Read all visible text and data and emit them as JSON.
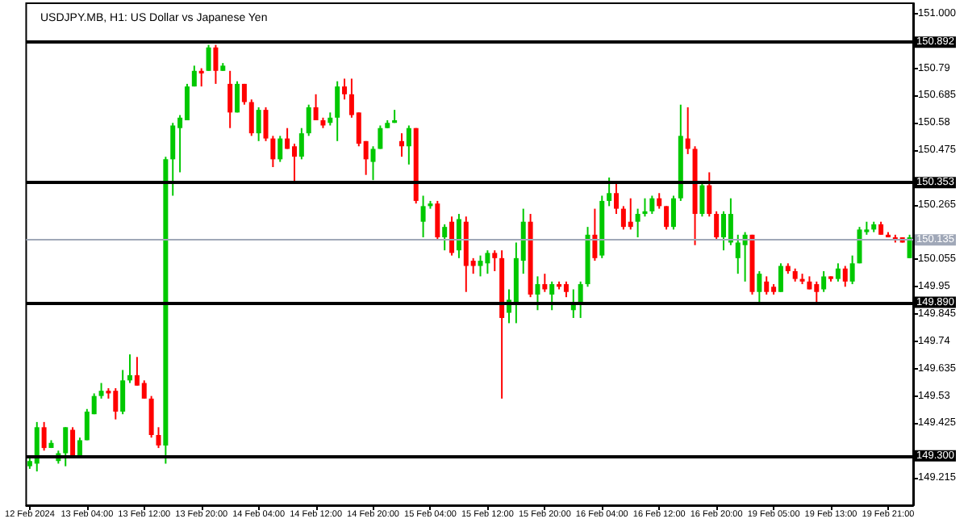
{
  "chart_data": {
    "type": "candlestick",
    "title": "USDJPY.MB, H1: US Dollar vs Japanese Yen",
    "categories": [
      "12 Feb 2024",
      null,
      null,
      null,
      null,
      null,
      null,
      null,
      "13 Feb 04:00",
      null,
      null,
      null,
      null,
      null,
      null,
      null,
      "13 Feb 12:00",
      null,
      null,
      null,
      null,
      null,
      null,
      null,
      "13 Feb 20:00",
      null,
      null,
      null,
      null,
      null,
      null,
      null,
      "14 Feb 04:00",
      null,
      null,
      null,
      null,
      null,
      null,
      null,
      "14 Feb 12:00",
      null,
      null,
      null,
      null,
      null,
      null,
      null,
      "14 Feb 20:00",
      null,
      null,
      null,
      null,
      null,
      null,
      null,
      "15 Feb 04:00",
      null,
      null,
      null,
      null,
      null,
      null,
      null,
      "15 Feb 12:00",
      null,
      null,
      null,
      null,
      null,
      null,
      null,
      "15 Feb 20:00",
      null,
      null,
      null,
      null,
      null,
      null,
      null,
      "16 Feb 04:00",
      null,
      null,
      null,
      null,
      null,
      null,
      null,
      "16 Feb 12:00",
      null,
      null,
      null,
      null,
      null,
      null,
      null,
      "16 Feb 20:00",
      null,
      null,
      null,
      null,
      null,
      null,
      null,
      "19 Feb 05:00",
      null,
      null,
      null,
      null,
      null,
      null,
      null,
      "19 Feb 13:00",
      null,
      null,
      null,
      null,
      null,
      null,
      null,
      "19 Feb 21:00",
      null,
      null,
      null
    ],
    "ohlc": [
      [
        149.26,
        149.29,
        149.25,
        149.28
      ],
      [
        149.27,
        149.43,
        149.24,
        149.41
      ],
      [
        149.41,
        149.43,
        149.32,
        149.33
      ],
      [
        149.33,
        149.36,
        149.33,
        149.35
      ],
      [
        149.28,
        149.32,
        149.27,
        149.31
      ],
      [
        149.31,
        149.41,
        149.26,
        149.41
      ],
      [
        149.4,
        149.41,
        149.3,
        149.3
      ],
      [
        149.3,
        149.37,
        149.3,
        149.36
      ],
      [
        149.36,
        149.48,
        149.36,
        149.47
      ],
      [
        149.46,
        149.54,
        149.46,
        149.53
      ],
      [
        149.53,
        149.58,
        149.52,
        149.55
      ],
      [
        149.55,
        149.56,
        149.52,
        149.54
      ],
      [
        149.55,
        149.56,
        149.44,
        149.47
      ],
      [
        149.47,
        149.63,
        149.46,
        149.59
      ],
      [
        149.59,
        149.69,
        149.58,
        149.61
      ],
      [
        149.61,
        149.68,
        149.57,
        149.57
      ],
      [
        149.58,
        149.59,
        149.52,
        149.52
      ],
      [
        149.52,
        149.53,
        149.37,
        149.38
      ],
      [
        149.38,
        149.41,
        149.33,
        149.34
      ],
      [
        149.34,
        150.45,
        149.27,
        150.44
      ],
      [
        150.44,
        150.58,
        150.3,
        150.57
      ],
      [
        150.56,
        150.61,
        150.39,
        150.6
      ],
      [
        150.59,
        150.73,
        150.59,
        150.72
      ],
      [
        150.72,
        150.8,
        150.72,
        150.78
      ],
      [
        150.78,
        150.79,
        150.72,
        150.77
      ],
      [
        150.78,
        150.88,
        150.78,
        150.87
      ],
      [
        150.87,
        150.88,
        150.73,
        150.78
      ],
      [
        150.78,
        150.81,
        150.78,
        150.8
      ],
      [
        150.73,
        150.78,
        150.56,
        150.62
      ],
      [
        150.62,
        150.74,
        150.62,
        150.73
      ],
      [
        150.73,
        150.73,
        150.65,
        150.66
      ],
      [
        150.66,
        150.67,
        150.53,
        150.54
      ],
      [
        150.54,
        150.64,
        150.51,
        150.63
      ],
      [
        150.63,
        150.64,
        150.51,
        150.52
      ],
      [
        150.52,
        150.53,
        150.41,
        150.44
      ],
      [
        150.44,
        150.53,
        150.43,
        150.52
      ],
      [
        150.52,
        150.56,
        150.48,
        150.48
      ],
      [
        150.49,
        150.5,
        150.35,
        150.45
      ],
      [
        150.45,
        150.56,
        150.44,
        150.54
      ],
      [
        150.54,
        150.65,
        150.53,
        150.64
      ],
      [
        150.64,
        150.69,
        150.59,
        150.59
      ],
      [
        150.59,
        150.6,
        150.56,
        150.57
      ],
      [
        150.58,
        150.62,
        150.57,
        150.6
      ],
      [
        150.6,
        150.74,
        150.51,
        150.72
      ],
      [
        150.72,
        150.75,
        150.67,
        150.69
      ],
      [
        150.69,
        150.75,
        150.6,
        150.61
      ],
      [
        150.62,
        150.62,
        150.49,
        150.5
      ],
      [
        150.51,
        150.51,
        150.38,
        150.44
      ],
      [
        150.43,
        150.49,
        150.36,
        150.48
      ],
      [
        150.48,
        150.57,
        150.48,
        150.56
      ],
      [
        150.56,
        150.59,
        150.56,
        150.58
      ],
      [
        150.58,
        150.63,
        150.58,
        150.59
      ],
      [
        150.51,
        150.54,
        150.45,
        150.49
      ],
      [
        150.49,
        150.57,
        150.42,
        150.56
      ],
      [
        150.56,
        150.56,
        150.27,
        150.28
      ],
      [
        150.2,
        150.3,
        150.14,
        150.26
      ],
      [
        150.26,
        150.28,
        150.25,
        150.27
      ],
      [
        150.27,
        150.28,
        150.13,
        150.14
      ],
      [
        150.14,
        150.19,
        150.09,
        150.18
      ],
      [
        150.2,
        150.22,
        150.07,
        150.08
      ],
      [
        150.09,
        150.23,
        150.06,
        150.21
      ],
      [
        150.2,
        150.22,
        149.93,
        150.03
      ],
      [
        150.05,
        150.06,
        150.0,
        150.03
      ],
      [
        150.03,
        150.07,
        149.99,
        150.05
      ],
      [
        150.04,
        150.09,
        150.0,
        150.08
      ],
      [
        150.08,
        150.09,
        150.01,
        150.06
      ],
      [
        150.06,
        150.09,
        149.52,
        149.83
      ],
      [
        149.85,
        149.94,
        149.81,
        149.9
      ],
      [
        149.89,
        150.12,
        149.81,
        150.06
      ],
      [
        150.05,
        150.25,
        150.0,
        150.2
      ],
      [
        150.2,
        150.23,
        149.91,
        149.92
      ],
      [
        149.92,
        149.99,
        149.86,
        149.96
      ],
      [
        149.96,
        150.0,
        149.93,
        149.94
      ],
      [
        149.92,
        149.97,
        149.86,
        149.96
      ],
      [
        149.96,
        149.97,
        149.94,
        149.95
      ],
      [
        149.96,
        149.97,
        149.91,
        149.93
      ],
      [
        149.86,
        149.94,
        149.83,
        149.89
      ],
      [
        149.89,
        149.97,
        149.83,
        149.96
      ],
      [
        149.96,
        150.18,
        149.95,
        150.15
      ],
      [
        150.15,
        150.25,
        150.05,
        150.06
      ],
      [
        150.07,
        150.3,
        150.06,
        150.28
      ],
      [
        150.28,
        150.37,
        150.26,
        150.31
      ],
      [
        150.31,
        150.35,
        150.23,
        150.25
      ],
      [
        150.25,
        150.26,
        150.17,
        150.18
      ],
      [
        150.2,
        150.29,
        150.17,
        150.18
      ],
      [
        150.2,
        150.25,
        150.14,
        150.23
      ],
      [
        150.23,
        150.29,
        150.22,
        150.24
      ],
      [
        150.24,
        150.3,
        150.23,
        150.29
      ],
      [
        150.29,
        150.31,
        150.25,
        150.26
      ],
      [
        150.26,
        150.26,
        150.17,
        150.18
      ],
      [
        150.18,
        150.3,
        150.17,
        150.29
      ],
      [
        150.29,
        150.65,
        150.28,
        150.53
      ],
      [
        150.52,
        150.64,
        150.46,
        150.48
      ],
      [
        150.48,
        150.49,
        150.11,
        150.23
      ],
      [
        150.23,
        150.35,
        150.22,
        150.34
      ],
      [
        150.34,
        150.39,
        150.22,
        150.23
      ],
      [
        150.23,
        150.24,
        150.13,
        150.14
      ],
      [
        150.14,
        150.24,
        150.09,
        150.23
      ],
      [
        150.12,
        150.29,
        150.11,
        150.23
      ],
      [
        150.06,
        150.15,
        150.0,
        150.12
      ],
      [
        150.11,
        150.16,
        149.97,
        150.15
      ],
      [
        150.15,
        150.15,
        149.92,
        149.93
      ],
      [
        149.93,
        150.01,
        149.88,
        150.0
      ],
      [
        149.97,
        149.99,
        149.92,
        149.93
      ],
      [
        149.95,
        149.96,
        149.92,
        149.93
      ],
      [
        149.93,
        150.04,
        149.93,
        150.03
      ],
      [
        150.03,
        150.04,
        150.0,
        150.01
      ],
      [
        150.01,
        150.02,
        149.97,
        149.98
      ],
      [
        149.98,
        150.0,
        149.96,
        149.97
      ],
      [
        149.97,
        149.99,
        149.94,
        149.94
      ],
      [
        149.96,
        149.97,
        149.89,
        149.93
      ],
      [
        149.94,
        150.01,
        149.93,
        149.99
      ],
      [
        149.99,
        149.99,
        149.97,
        149.98
      ],
      [
        149.98,
        150.04,
        149.97,
        150.02
      ],
      [
        150.02,
        150.03,
        149.95,
        149.97
      ],
      [
        149.97,
        150.07,
        149.96,
        150.04
      ],
      [
        150.04,
        150.18,
        150.04,
        150.17
      ],
      [
        150.16,
        150.2,
        150.15,
        150.17
      ],
      [
        150.17,
        150.2,
        150.16,
        150.19
      ],
      [
        150.19,
        150.2,
        150.15,
        150.15
      ],
      [
        150.15,
        150.16,
        150.14,
        150.14
      ],
      [
        150.14,
        150.15,
        150.12,
        150.13
      ],
      [
        150.14,
        150.14,
        150.12,
        150.12
      ],
      [
        150.06,
        150.15,
        150.06,
        150.14
      ]
    ],
    "colors": [
      "#00c800",
      "#00c800",
      "#ff0000",
      "#00c800",
      "#00c800",
      "#00c800",
      "#ff0000",
      "#00c800",
      "#00c800",
      "#00c800",
      "#00c800",
      "#ff0000",
      "#ff0000",
      "#00c800",
      "#00c800",
      "#ff0000",
      "#ff0000",
      "#ff0000",
      "#ff0000",
      "#00c800",
      "#00c800",
      "#00c800",
      "#00c800",
      "#00c800",
      "#ff0000",
      "#00c800",
      "#ff0000",
      "#00c800",
      "#ff0000",
      "#00c800",
      "#ff0000",
      "#ff0000",
      "#00c800",
      "#ff0000",
      "#ff0000",
      "#00c800",
      "#ff0000",
      "#ff0000",
      "#00c800",
      "#00c800",
      "#ff0000",
      "#ff0000",
      "#00c800",
      "#00c800",
      "#ff0000",
      "#ff0000",
      "#ff0000",
      "#ff0000",
      "#00c800",
      "#00c800",
      "#00c800",
      "#00c800",
      "#ff0000",
      "#00c800",
      "#ff0000",
      "#00c800",
      "#00c800",
      "#ff0000",
      "#00c800",
      "#ff0000",
      "#00c800",
      "#ff0000",
      "#ff0000",
      "#00c800",
      "#00c800",
      "#ff0000",
      "#ff0000",
      "#00c800",
      "#00c800",
      "#00c800",
      "#ff0000",
      "#00c800",
      "#ff0000",
      "#00c800",
      "#ff0000",
      "#ff0000",
      "#00c800",
      "#00c800",
      "#00c800",
      "#ff0000",
      "#00c800",
      "#00c800",
      "#ff0000",
      "#ff0000",
      "#ff0000",
      "#00c800",
      "#00c800",
      "#00c800",
      "#ff0000",
      "#ff0000",
      "#00c800",
      "#00c800",
      "#ff0000",
      "#ff0000",
      "#00c800",
      "#ff0000",
      "#ff0000",
      "#00c800",
      "#00c800",
      "#00c800",
      "#00c800",
      "#ff0000",
      "#00c800",
      "#ff0000",
      "#ff0000",
      "#00c800",
      "#ff0000",
      "#ff0000",
      "#ff0000",
      "#ff0000",
      "#ff0000",
      "#00c800",
      "#ff0000",
      "#00c800",
      "#ff0000",
      "#00c800",
      "#00c800",
      "#00c800",
      "#00c800",
      "#ff0000",
      "#ff0000",
      "#ff0000",
      "#ff0000",
      "#00c800"
    ],
    "ylim": [
      149.11,
      151.04
    ],
    "yticks": [
      149.215,
      149.425,
      149.53,
      149.635,
      149.74,
      149.845,
      149.95,
      150.055,
      150.265,
      150.475,
      150.58,
      150.685,
      150.79,
      {
        "value": 151.0,
        "label": "151.000"
      }
    ],
    "ref_lines": [
      {
        "axis": "y",
        "value": 150.892,
        "label": "150.892",
        "color": "#000000",
        "line_style": "solid"
      },
      {
        "axis": "y",
        "value": 150.353,
        "label": "150.353",
        "color": "#000000",
        "line_style": "solid"
      },
      {
        "axis": "y",
        "value": 149.89,
        "label": "149.890",
        "color": "#000000",
        "line_style": "solid"
      },
      {
        "axis": "y",
        "value": 149.3,
        "label": "149.300",
        "color": "#000000",
        "line_style": "solid"
      },
      {
        "axis": "y",
        "value": 150.135,
        "label": "150.135",
        "color": "#a0a8b8",
        "line_style": "solid"
      }
    ]
  }
}
